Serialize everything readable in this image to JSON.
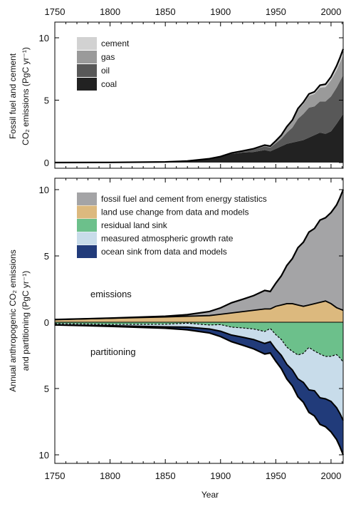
{
  "chart_data": [
    {
      "type": "area",
      "stacked": true,
      "xlim": [
        1750,
        2011
      ],
      "ylim": [
        0,
        10
      ],
      "x_ticks": [
        "1750",
        "1800",
        "1850",
        "1900",
        "1950",
        "2000"
      ],
      "y_ticks": [
        "0",
        "5",
        "10"
      ],
      "ylabel_line1": "Fossil fuel and cement",
      "ylabel_line2": "CO₂ emissions (PgC yr⁻¹)",
      "x": [
        1750,
        1800,
        1850,
        1870,
        1890,
        1900,
        1910,
        1920,
        1930,
        1940,
        1945,
        1950,
        1955,
        1960,
        1965,
        1970,
        1975,
        1980,
        1985,
        1990,
        1995,
        2000,
        2005,
        2008,
        2011
      ],
      "series": [
        {
          "name": "coal",
          "color": "#222222",
          "values": [
            0,
            0.01,
            0.05,
            0.12,
            0.3,
            0.45,
            0.7,
            0.8,
            0.85,
            1.0,
            0.9,
            1.1,
            1.3,
            1.5,
            1.6,
            1.7,
            1.8,
            2.0,
            2.2,
            2.4,
            2.3,
            2.5,
            3.1,
            3.5,
            3.9
          ]
        },
        {
          "name": "oil",
          "color": "#585858",
          "values": [
            0,
            0,
            0,
            0,
            0.01,
            0.02,
            0.05,
            0.1,
            0.2,
            0.3,
            0.3,
            0.45,
            0.6,
            0.9,
            1.2,
            1.8,
            2.1,
            2.4,
            2.3,
            2.5,
            2.6,
            2.8,
            2.9,
            3.0,
            3.1
          ]
        },
        {
          "name": "gas",
          "color": "#9a9a9a",
          "values": [
            0,
            0,
            0,
            0,
            0,
            0.01,
            0.02,
            0.03,
            0.05,
            0.08,
            0.1,
            0.15,
            0.25,
            0.4,
            0.5,
            0.7,
            0.8,
            0.95,
            1.0,
            1.1,
            1.15,
            1.3,
            1.4,
            1.5,
            1.6
          ]
        },
        {
          "name": "cement",
          "color": "#d2d2d2",
          "values": [
            0,
            0,
            0,
            0,
            0,
            0,
            0,
            0,
            0.01,
            0.02,
            0.02,
            0.04,
            0.05,
            0.08,
            0.1,
            0.12,
            0.14,
            0.15,
            0.17,
            0.2,
            0.23,
            0.27,
            0.34,
            0.38,
            0.5
          ]
        }
      ]
    },
    {
      "type": "area",
      "xlabel": "Year",
      "ylabel_line1": "Annual anthropogenic CO₂ emissions",
      "ylabel_line2": "and partitioning (PgC yr⁻¹)",
      "xlim": [
        1750,
        2011
      ],
      "ylim": [
        -10,
        10
      ],
      "x_ticks": [
        "1750",
        "1800",
        "1850",
        "1900",
        "1950",
        "2000"
      ],
      "y_ticks": [
        "10",
        "5",
        "0",
        "5",
        "10"
      ],
      "annotations": {
        "upper": "emissions",
        "lower": "partitioning"
      },
      "x": [
        1750,
        1800,
        1850,
        1870,
        1890,
        1900,
        1910,
        1920,
        1930,
        1940,
        1945,
        1950,
        1955,
        1960,
        1965,
        1970,
        1975,
        1980,
        1985,
        1990,
        1995,
        2000,
        2005,
        2008,
        2011
      ],
      "emission_series": [
        {
          "name": "land use change from data and models",
          "color": "#dcb97e",
          "values": [
            0.2,
            0.3,
            0.4,
            0.45,
            0.5,
            0.6,
            0.7,
            0.8,
            0.9,
            1.0,
            1.0,
            1.2,
            1.3,
            1.4,
            1.4,
            1.3,
            1.2,
            1.3,
            1.4,
            1.5,
            1.6,
            1.4,
            1.1,
            1.0,
            0.9
          ]
        },
        {
          "name": "fossil fuel and cement from energy statistics",
          "color": "#a4a4a6",
          "values": [
            0,
            0.01,
            0.05,
            0.12,
            0.31,
            0.48,
            0.77,
            0.93,
            1.11,
            1.4,
            1.32,
            1.74,
            2.2,
            2.88,
            3.4,
            4.32,
            4.84,
            5.5,
            5.67,
            6.2,
            6.28,
            6.87,
            7.74,
            8.38,
            9.1
          ]
        }
      ],
      "sink_series": [
        {
          "name": "ocean sink from data and models",
          "color": "#213b7a",
          "values": [
            0,
            0.05,
            0.1,
            0.2,
            0.3,
            0.4,
            0.5,
            0.6,
            0.7,
            0.8,
            0.85,
            0.9,
            1.0,
            1.1,
            1.2,
            1.35,
            1.5,
            1.7,
            1.9,
            2.0,
            2.1,
            2.3,
            2.4,
            2.5,
            2.6
          ]
        },
        {
          "name": "measured atmospheric growth rate",
          "color": "#c8dcea",
          "values": [
            0.1,
            0.1,
            0.2,
            0.3,
            0.3,
            0.5,
            0.6,
            0.7,
            0.8,
            0.9,
            1.0,
            1.1,
            1.2,
            1.3,
            1.4,
            1.8,
            2.2,
            3.2,
            3.0,
            3.3,
            3.2,
            3.4,
            4.0,
            4.2,
            4.4
          ]
        },
        {
          "name": "residual land sink",
          "color": "#6cc08b",
          "values": [
            0.1,
            0.16,
            0.15,
            0.07,
            0.21,
            0.18,
            0.37,
            0.43,
            0.51,
            0.7,
            0.47,
            0.94,
            1.3,
            1.88,
            2.2,
            2.47,
            2.34,
            1.9,
            2.17,
            2.4,
            2.58,
            2.57,
            2.44,
            2.68,
            3.0
          ]
        }
      ],
      "legend": [
        {
          "name": "fossil fuel and cement from energy statistics",
          "color": "#a4a4a6"
        },
        {
          "name": "land use change from data and models",
          "color": "#dcb97e"
        },
        {
          "name": "residual land sink",
          "color": "#6cc08b"
        },
        {
          "name": "measured atmospheric growth rate",
          "color": "#c8dcea"
        },
        {
          "name": "ocean sink from data and models",
          "color": "#213b7a"
        }
      ],
      "legend_position": "top-left"
    }
  ]
}
